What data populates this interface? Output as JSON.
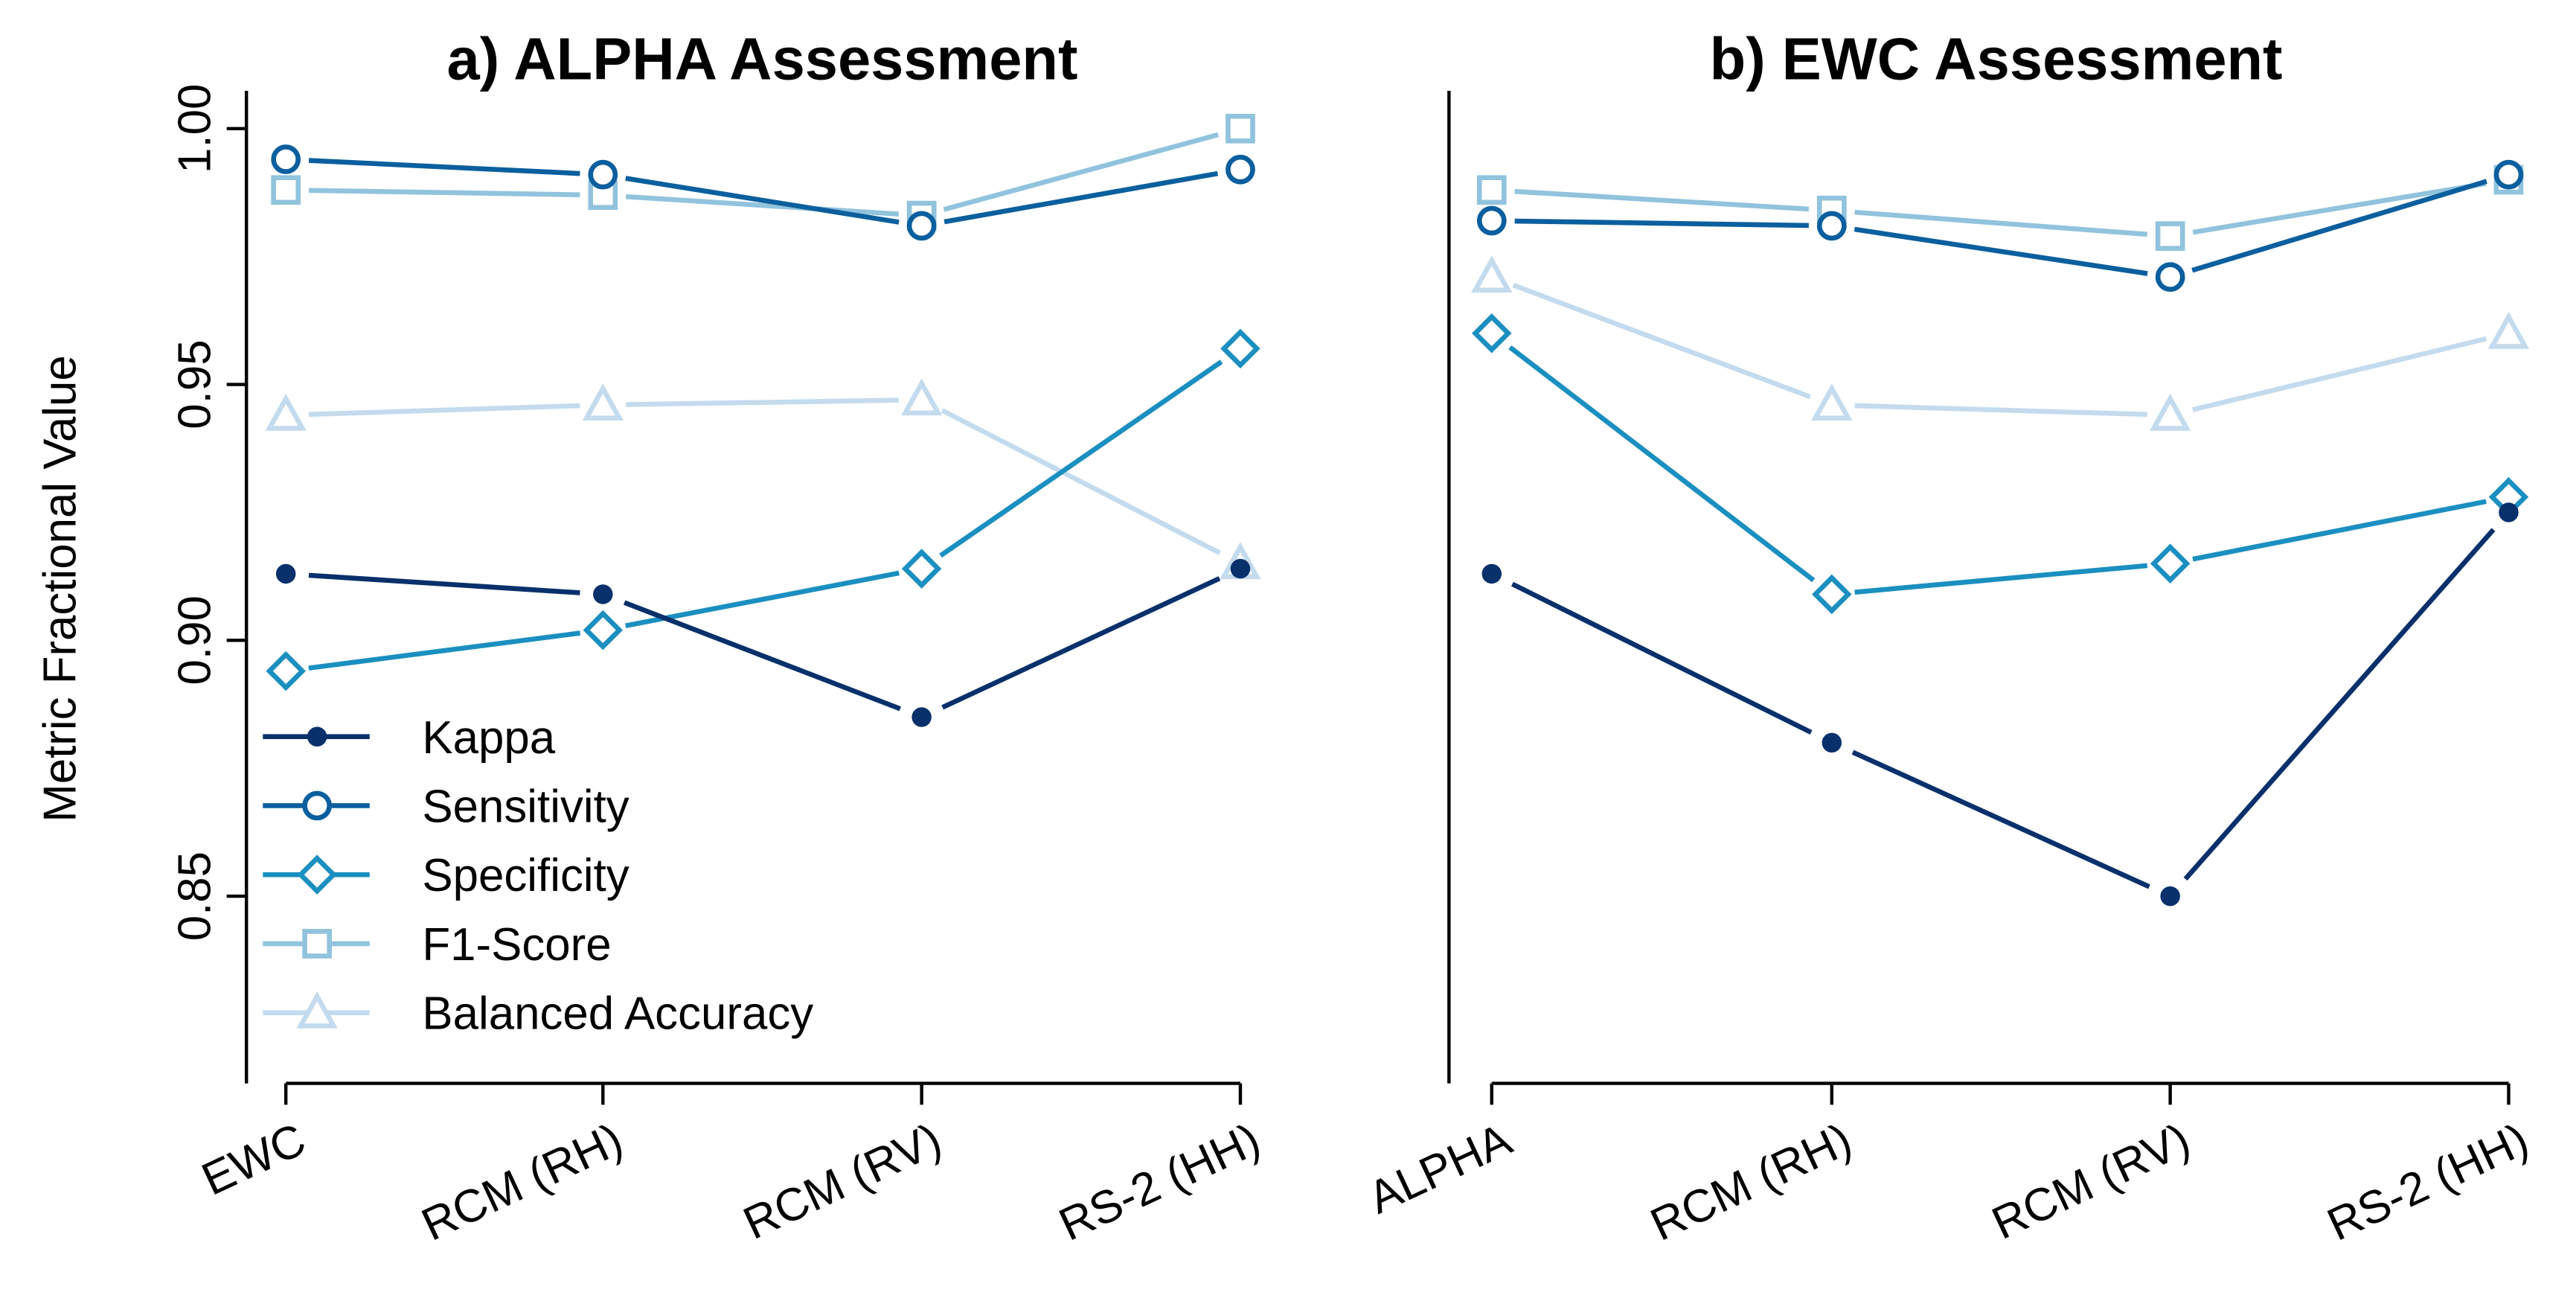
{
  "chart_data": [
    {
      "type": "line",
      "title": "a) ALPHA Assessment",
      "xlabel": "",
      "ylabel": "Metric Fractional Value",
      "categories": [
        "EWC",
        "RCM (RH)",
        "RCM (RV)",
        "RS-2 (HH)"
      ],
      "ylim": [
        0.813,
        1.007
      ],
      "yticks": [
        "0.85",
        "0.90",
        "0.95",
        "1.00"
      ],
      "legend_position": "bottom-left",
      "series": [
        {
          "name": "Kappa",
          "color": "#08306b",
          "marker": "filled-circle",
          "values": [
            0.913,
            0.909,
            0.885,
            0.914
          ]
        },
        {
          "name": "Sensitivity",
          "color": "#0b5f9e",
          "marker": "circle",
          "values": [
            0.994,
            0.991,
            0.981,
            0.992
          ]
        },
        {
          "name": "Specificity",
          "color": "#1b8fc0",
          "marker": "diamond",
          "values": [
            0.894,
            0.902,
            0.914,
            0.957
          ]
        },
        {
          "name": "F1-Score",
          "color": "#91c3dd",
          "marker": "square",
          "values": [
            0.988,
            0.987,
            0.983,
            1.0
          ]
        },
        {
          "name": "Balanced Accuracy",
          "color": "#c4dbee",
          "marker": "triangle",
          "values": [
            0.944,
            0.946,
            0.947,
            0.915
          ]
        }
      ]
    },
    {
      "type": "line",
      "title": "b) EWC Assessment",
      "xlabel": "",
      "ylabel": "",
      "categories": [
        "ALPHA",
        "RCM (RH)",
        "RCM (RV)",
        "RS-2 (HH)"
      ],
      "ylim": [
        0.813,
        1.007
      ],
      "series": [
        {
          "name": "Kappa",
          "color": "#08306b",
          "marker": "filled-circle",
          "values": [
            0.913,
            0.88,
            0.85,
            0.925
          ]
        },
        {
          "name": "Sensitivity",
          "color": "#0b5f9e",
          "marker": "circle",
          "values": [
            0.982,
            0.981,
            0.971,
            0.991
          ]
        },
        {
          "name": "Specificity",
          "color": "#1b8fc0",
          "marker": "diamond",
          "values": [
            0.96,
            0.909,
            0.915,
            0.928
          ]
        },
        {
          "name": "F1-Score",
          "color": "#91c3dd",
          "marker": "square",
          "values": [
            0.988,
            0.984,
            0.979,
            0.99
          ]
        },
        {
          "name": "Balanced Accuracy",
          "color": "#c4dbee",
          "marker": "triangle",
          "values": [
            0.971,
            0.946,
            0.944,
            0.96
          ]
        }
      ]
    }
  ]
}
